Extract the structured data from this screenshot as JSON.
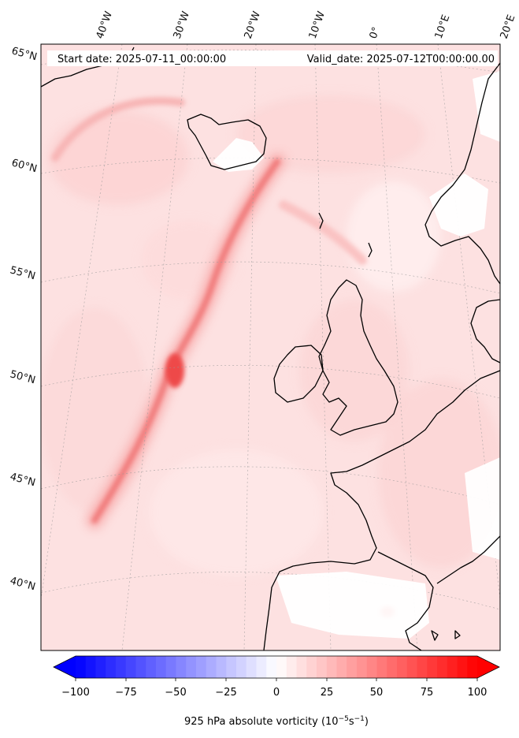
{
  "header": {
    "start_date": "Start date: 2025-07-11_00:00:00",
    "valid_date": "Valid_date: 2025-07-12T00:00:00.00"
  },
  "map": {
    "lon_labels": [
      "40°W",
      "30°W",
      "20°W",
      "10°W",
      "0°",
      "10°E",
      "20°E"
    ],
    "lat_labels": [
      "65°N",
      "60°N",
      "55°N",
      "50°N",
      "45°N",
      "40°N"
    ],
    "field": "925 hPa absolute vorticity",
    "colormap": "bwr",
    "colors": {
      "min": "#0000ff",
      "mid": "#ffffff",
      "max": "#ff0000",
      "coast": "#000000"
    }
  },
  "colorbar": {
    "label_prefix": "925 hPa absolute vorticity (10",
    "label_exp1": "−5",
    "label_mid": "s",
    "label_exp2": "−1",
    "label_suffix": ")",
    "ticks": [
      "−100",
      "−75",
      "−50",
      "−25",
      "0",
      "25",
      "50",
      "75",
      "100"
    ],
    "range": [
      -100,
      100
    ],
    "extend": "both"
  }
}
